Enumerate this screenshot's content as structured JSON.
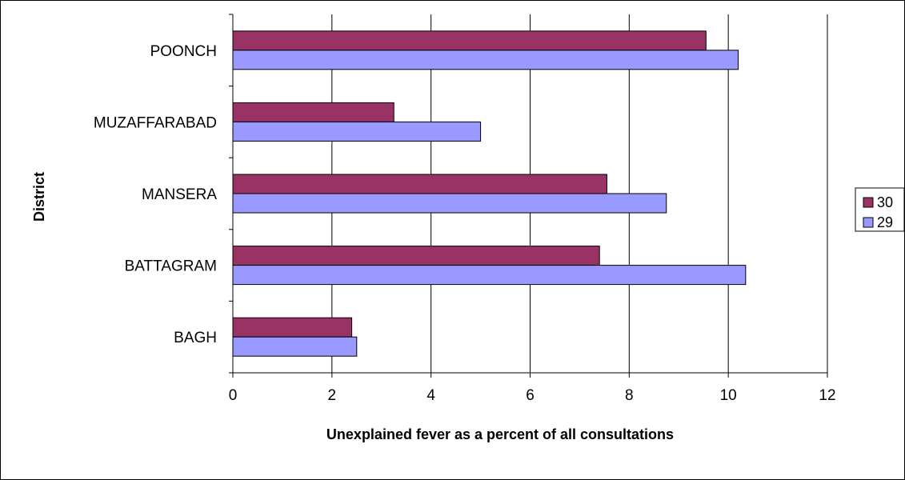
{
  "chart_data": {
    "type": "bar",
    "orientation": "horizontal",
    "categories": [
      "POONCH",
      "MUZAFFARABAD",
      "MANSERA",
      "BATTAGRAM",
      "BAGH"
    ],
    "series": [
      {
        "name": "30",
        "color": "#993366",
        "values": [
          9.55,
          3.25,
          7.55,
          7.4,
          2.4
        ]
      },
      {
        "name": "29",
        "color": "#9999FF",
        "values": [
          10.2,
          5.0,
          8.75,
          10.35,
          2.5
        ]
      }
    ],
    "xlabel": "Unexplained fever as a percent of all consultations",
    "ylabel": "District",
    "xlim": [
      0,
      12
    ],
    "xticks": [
      0,
      2,
      4,
      6,
      8,
      10,
      12
    ],
    "grid": "vertical",
    "legend": "right",
    "legend_order": [
      "30",
      "29"
    ]
  }
}
